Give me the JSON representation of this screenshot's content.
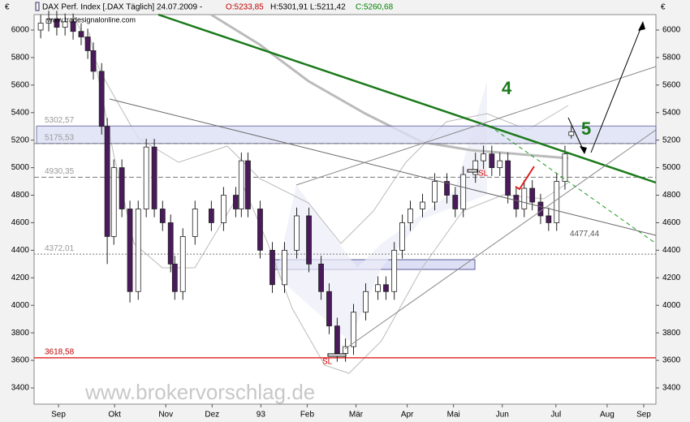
{
  "chart_data": {
    "type": "candlestick",
    "header": {
      "label": "DAX Perf. Index [.DAX  Täglich] 24.07.2009 -",
      "open": "O:5233,85",
      "hl": "H:5301,91 L:5211,42",
      "close": "C:5260,68"
    },
    "currency": "€",
    "source": "www.tradesignalonline.com",
    "watermark": "www.brokervorschlag.de",
    "annotations": [
      "4",
      "5",
      "SL",
      "SL"
    ],
    "x": [
      2.7,
      6,
      9.3,
      12.7,
      16,
      19.3,
      22,
      24.3,
      27.7,
      30,
      32.7,
      36,
      39.3,
      42.7,
      46,
      49.3,
      52.7,
      56,
      57.7,
      61,
      66,
      72.7,
      77.7,
      82.7,
      85,
      87.7,
      92.7,
      97.7,
      102.7,
      107.7,
      112.7,
      117.7,
      121,
      124.3,
      127.7,
      131,
      136,
      141,
      144.3,
      147.7,
      151,
      154.3,
      159.3,
      164.3,
      169.3,
      172.7,
      176,
      181,
      184.3,
      187.7,
      191,
      194.3,
      197.7,
      201,
      204.3,
      207.7,
      211,
      214.3,
      217.7,
      220.3
    ],
    "open": [
      6000,
      6050,
      6080,
      6020,
      6060,
      5990,
      5950,
      5850,
      5700,
      5300,
      4500,
      5000,
      4700,
      4100,
      4700,
      5150,
      4700,
      4600,
      4300,
      4100,
      4500,
      4700,
      4600,
      4800,
      4700,
      5050,
      4700,
      4400,
      4150,
      4400,
      4650,
      4300,
      4100,
      3850,
      3650,
      3700,
      3950,
      4100,
      4150,
      4100,
      4400,
      4600,
      4700,
      4750,
      4900,
      4800,
      4700,
      4950,
      5050,
      5100,
      5000,
      5050,
      4800,
      4700,
      4850,
      4750,
      4650,
      4600,
      4900,
      5233.85
    ],
    "high": [
      6110,
      6140,
      6140,
      6120,
      6120,
      6050,
      6010,
      5910,
      5760,
      5360,
      5060,
      5060,
      4760,
      4760,
      5210,
      5210,
      4760,
      4660,
      4360,
      4560,
      4760,
      4760,
      4860,
      4860,
      5110,
      5110,
      4760,
      4460,
      4460,
      4710,
      4710,
      4360,
      4160,
      3910,
      3760,
      4010,
      4160,
      4210,
      4210,
      4460,
      4660,
      4760,
      4810,
      4960,
      4960,
      4860,
      5010,
      5110,
      5160,
      5160,
      5110,
      5110,
      4860,
      4910,
      4910,
      4810,
      4710,
      4960,
      5160,
      5301.91
    ],
    "low": [
      5940,
      5990,
      5960,
      5960,
      5930,
      5890,
      5790,
      5640,
      5240,
      4300,
      4440,
      4640,
      4020,
      4040,
      4640,
      4640,
      4540,
      4240,
      4040,
      4040,
      4440,
      4540,
      4540,
      4640,
      4640,
      4640,
      4340,
      4090,
      4090,
      4340,
      4240,
      4040,
      3790,
      3590,
      3590,
      3640,
      3890,
      4040,
      4040,
      4040,
      4340,
      4540,
      4640,
      4690,
      4740,
      4640,
      4640,
      4890,
      4990,
      4940,
      4940,
      4740,
      4640,
      4640,
      4690,
      4590,
      4540,
      4540,
      4840,
      5211.42
    ],
    "close": [
      6050,
      6080,
      6020,
      6060,
      5990,
      5950,
      5850,
      5700,
      5300,
      4500,
      5000,
      4700,
      4100,
      4700,
      5150,
      4700,
      4600,
      4300,
      4100,
      4500,
      4700,
      4600,
      4800,
      4700,
      5050,
      4700,
      4400,
      4150,
      4400,
      4650,
      4300,
      4100,
      3850,
      3650,
      3700,
      3950,
      4100,
      4150,
      4100,
      4400,
      4600,
      4700,
      4750,
      4900,
      4800,
      4700,
      4950,
      5050,
      5100,
      5000,
      5050,
      4800,
      4700,
      4850,
      4750,
      4650,
      4600,
      4900,
      5100,
      5260.68
    ],
    "up_color": "#ffffff",
    "down_color": "#4a1a5c",
    "xlim": [
      0,
      255
    ],
    "xticks": [
      {
        "value": 10,
        "label": "Sep"
      },
      {
        "value": 33,
        "label": "Okt"
      },
      {
        "value": 54,
        "label": "Nov"
      },
      {
        "value": 73,
        "label": "Dez"
      },
      93,
      {
        "value": 112,
        "label": "Feb"
      },
      {
        "value": 132,
        "label": "Mär"
      },
      {
        "value": 153,
        "label": "Apr"
      },
      {
        "value": 172,
        "label": "Mai"
      },
      {
        "value": 192,
        "label": "Jun"
      },
      {
        "value": 214,
        "label": "Jul"
      },
      {
        "value": 235,
        "label": "Aug"
      },
      {
        "value": 250,
        "label": "Sep"
      }
    ],
    "ylim": [
      3282,
      6112
    ],
    "yticks": [
      3400,
      3600,
      3800,
      4000,
      4200,
      4400,
      4600,
      4800,
      5000,
      5200,
      5400,
      5600,
      5800,
      6000
    ],
    "levels": [
      {
        "value": 5302.57,
        "label": "5302,57",
        "style": "solid"
      },
      {
        "value": 5175.53,
        "label": "5175,53",
        "style": "dashed"
      },
      {
        "value": 4930.35,
        "label": "4930,35",
        "style": "dashed"
      },
      {
        "value": 4372.01,
        "label": "4372,01",
        "style": "dotted"
      },
      {
        "value": 3618.58,
        "label": "3618,58",
        "style": "red"
      },
      {
        "value": 4477.44,
        "label": "4477,44",
        "style": "none"
      }
    ]
  }
}
